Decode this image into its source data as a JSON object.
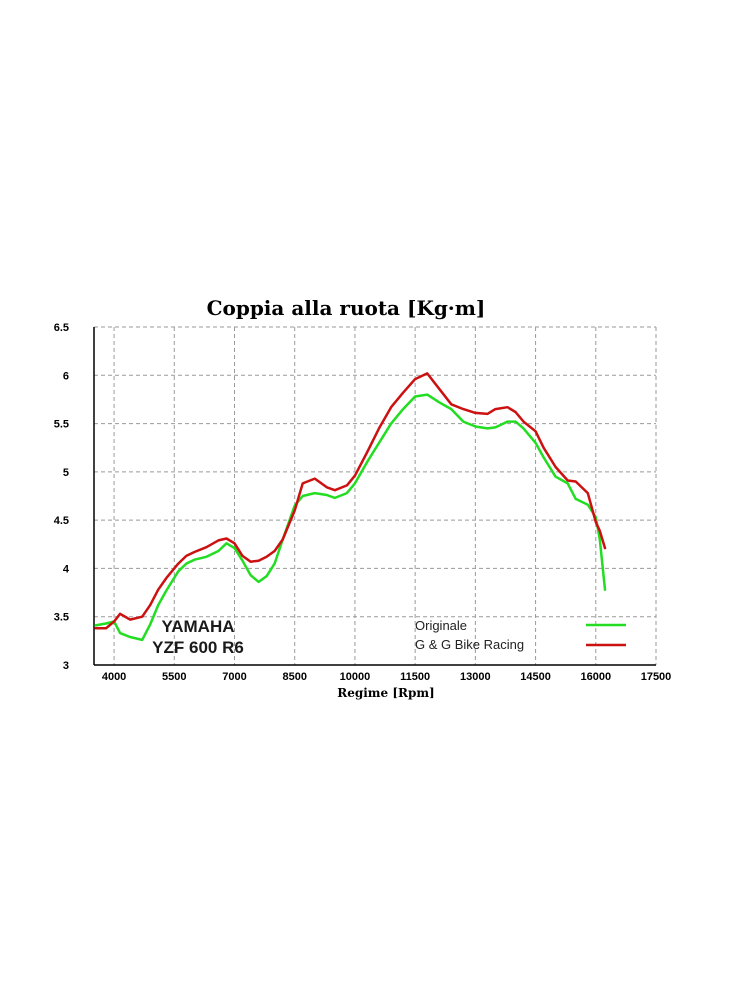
{
  "chart_data": {
    "type": "line",
    "title": "Coppia alla ruota  [Kg·m]",
    "xlabel": "Regime [Rpm]",
    "ylabel": "",
    "xlim": [
      3500,
      17500
    ],
    "ylim": [
      3,
      6.5
    ],
    "x_ticks": [
      "4000",
      "5500",
      "7000",
      "8500",
      "10000",
      "11500",
      "13000",
      "14500",
      "16000",
      "17500"
    ],
    "y_ticks": [
      "6.5",
      "6",
      "5.5",
      "5",
      "4.5",
      "4",
      "3.5",
      "3"
    ],
    "x_tick_values": [
      4000,
      5500,
      7000,
      8500,
      10000,
      11500,
      13000,
      14500,
      16000,
      17500
    ],
    "y_tick_values": [
      6.5,
      6,
      5.5,
      5,
      4.5,
      4,
      3.5,
      3
    ],
    "grid": true,
    "legend_position": "bottom-right",
    "series": [
      {
        "name": "Originale",
        "color": "#22dd22",
        "x": [
          3540,
          3800,
          4000,
          4150,
          4400,
          4700,
          4900,
          5100,
          5300,
          5600,
          5800,
          6000,
          6300,
          6600,
          6800,
          7000,
          7200,
          7400,
          7600,
          7800,
          8000,
          8200,
          8500,
          8700,
          9000,
          9300,
          9500,
          9800,
          10000,
          10300,
          10600,
          10900,
          11200,
          11500,
          11800,
          12100,
          12400,
          12700,
          13000,
          13300,
          13500,
          13800,
          14000,
          14200,
          14500,
          14700,
          15000,
          15300,
          15500,
          15800,
          16000,
          16100,
          16230
        ],
        "y": [
          3.41,
          3.43,
          3.45,
          3.33,
          3.29,
          3.26,
          3.42,
          3.62,
          3.77,
          3.97,
          4.05,
          4.09,
          4.12,
          4.18,
          4.26,
          4.21,
          4.08,
          3.93,
          3.86,
          3.92,
          4.05,
          4.3,
          4.65,
          4.75,
          4.78,
          4.76,
          4.73,
          4.78,
          4.88,
          5.1,
          5.3,
          5.5,
          5.65,
          5.78,
          5.8,
          5.72,
          5.65,
          5.52,
          5.47,
          5.45,
          5.46,
          5.52,
          5.52,
          5.45,
          5.3,
          5.15,
          4.95,
          4.88,
          4.72,
          4.66,
          4.53,
          4.3,
          3.78
        ]
      },
      {
        "name": "G & G Bike Racing",
        "color": "#cc1111",
        "x": [
          3540,
          3800,
          4000,
          4150,
          4400,
          4700,
          4900,
          5100,
          5300,
          5600,
          5800,
          6000,
          6300,
          6600,
          6800,
          7000,
          7200,
          7400,
          7600,
          7800,
          8000,
          8200,
          8500,
          8700,
          9000,
          9300,
          9500,
          9800,
          10000,
          10300,
          10600,
          10900,
          11200,
          11500,
          11800,
          12100,
          12400,
          12700,
          13000,
          13300,
          13500,
          13800,
          14000,
          14200,
          14500,
          14700,
          15000,
          15300,
          15500,
          15800,
          16000,
          16100,
          16230
        ],
        "y": [
          3.38,
          3.38,
          3.45,
          3.53,
          3.47,
          3.5,
          3.62,
          3.78,
          3.9,
          4.05,
          4.13,
          4.17,
          4.22,
          4.29,
          4.31,
          4.26,
          4.13,
          4.07,
          4.08,
          4.12,
          4.18,
          4.3,
          4.6,
          4.88,
          4.93,
          4.84,
          4.81,
          4.86,
          4.96,
          5.2,
          5.45,
          5.67,
          5.82,
          5.96,
          6.02,
          5.86,
          5.7,
          5.65,
          5.61,
          5.6,
          5.65,
          5.67,
          5.62,
          5.52,
          5.42,
          5.25,
          5.05,
          4.91,
          4.9,
          4.78,
          4.48,
          4.39,
          4.21
        ]
      }
    ],
    "annotations": [
      "YAMAHA",
      "YZF 600 R6"
    ]
  }
}
